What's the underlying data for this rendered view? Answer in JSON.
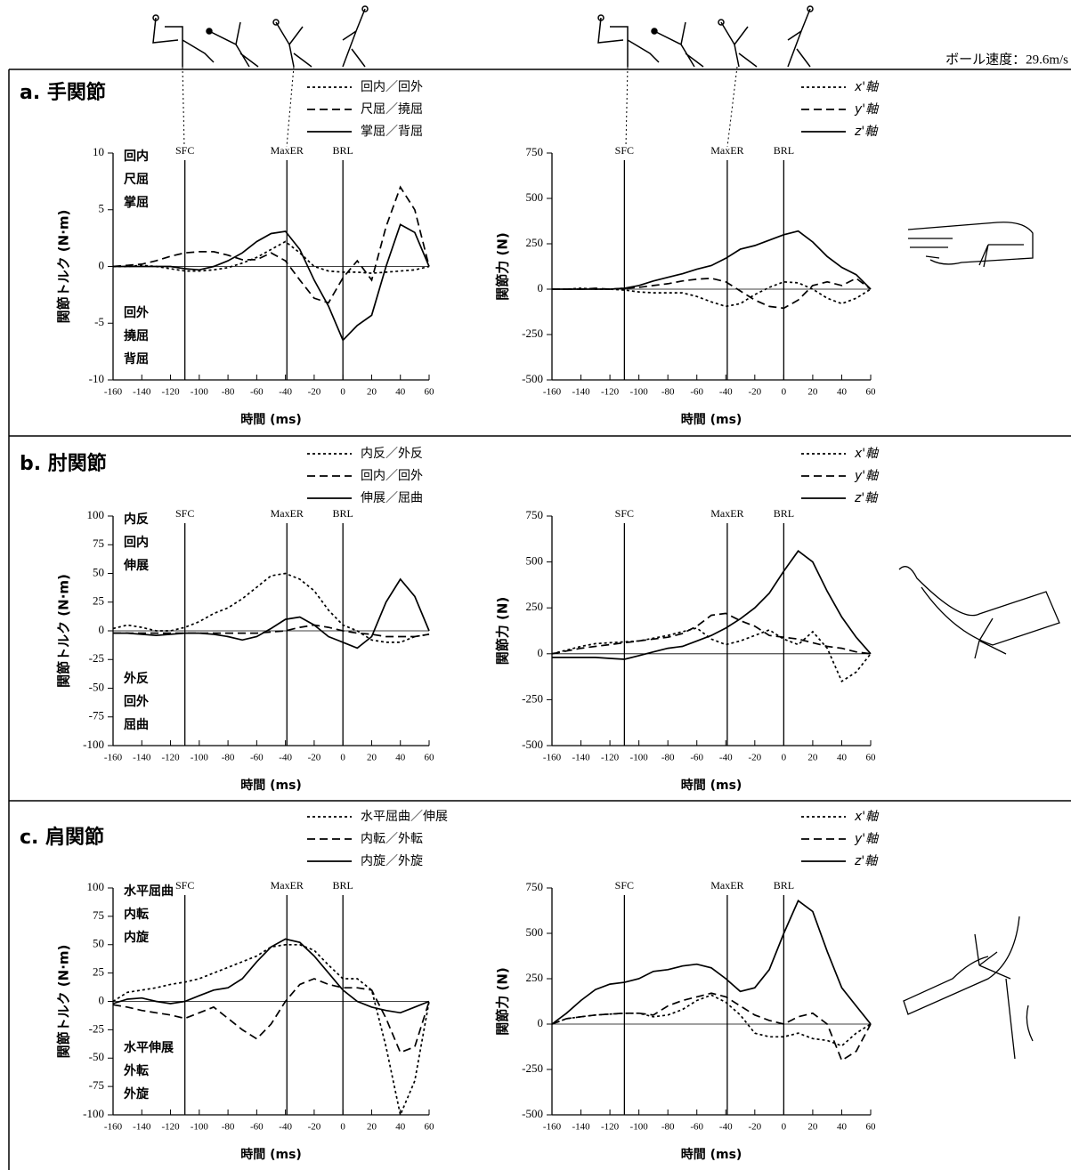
{
  "ball_speed_label": "ボール速度：29.6m/s",
  "chart_data": [
    {
      "type": "line",
      "title": "a. 手関節",
      "xlabel": "時間 (ms)",
      "ylabel": "関節トルク (N·m)",
      "x": [
        -160,
        -150,
        -140,
        -130,
        -120,
        -110,
        -100,
        -90,
        -80,
        -70,
        -60,
        -50,
        -40,
        -30,
        -20,
        -10,
        0,
        10,
        20,
        30,
        40,
        50,
        60
      ],
      "xlim": [
        -160,
        60
      ],
      "xticks": [
        -160,
        -140,
        -120,
        -100,
        -80,
        -60,
        -40,
        -20,
        0,
        20,
        40,
        60
      ],
      "ylim": [
        -10,
        10
      ],
      "yticks": [
        -10,
        -5,
        0,
        5,
        10
      ],
      "events": [
        {
          "label": "SFC",
          "x": -110
        },
        {
          "label": "MaxER",
          "x": -39
        },
        {
          "label": "BRL",
          "x": 0
        }
      ],
      "annotations_upper": [
        "回内",
        "尺屈",
        "掌屈"
      ],
      "annotations_lower": [
        "回外",
        "撓屈",
        "背屈"
      ],
      "series": [
        {
          "name": "回内／回外",
          "color": "#000",
          "style": "dotted",
          "values": [
            0,
            0,
            0.1,
            0,
            -0.2,
            -0.4,
            -0.4,
            -0.3,
            -0.1,
            0.3,
            0.8,
            1.5,
            2.2,
            1.2,
            0,
            -0.4,
            -0.5,
            -0.5,
            -0.6,
            -0.5,
            -0.4,
            -0.3,
            0
          ]
        },
        {
          "name": "尺屈／撓屈",
          "color": "#000",
          "style": "dashed",
          "values": [
            0,
            0.1,
            0.2,
            0.5,
            0.9,
            1.2,
            1.3,
            1.3,
            1,
            0.6,
            0.6,
            1.2,
            0.5,
            -1.2,
            -2.8,
            -3.2,
            -1,
            0.5,
            -1.2,
            3.5,
            7,
            5,
            0
          ]
        },
        {
          "name": "掌屈／背屈",
          "color": "#000",
          "style": "solid",
          "values": [
            0,
            0,
            0,
            0,
            0,
            -0.2,
            -0.3,
            0,
            0.5,
            1.2,
            2.2,
            2.9,
            3.1,
            1.5,
            -1.2,
            -3.5,
            -6.5,
            -5.2,
            -4.3,
            0,
            3.7,
            3,
            0
          ]
        }
      ]
    },
    {
      "type": "line",
      "xlabel": "時間 (ms)",
      "ylabel": "関節力 (N)",
      "x": [
        -160,
        -150,
        -140,
        -130,
        -120,
        -110,
        -100,
        -90,
        -80,
        -70,
        -60,
        -50,
        -40,
        -30,
        -20,
        -10,
        0,
        10,
        20,
        30,
        40,
        50,
        60
      ],
      "xlim": [
        -160,
        60
      ],
      "xticks": [
        -160,
        -140,
        -120,
        -100,
        -80,
        -60,
        -40,
        -20,
        0,
        20,
        40,
        60
      ],
      "ylim": [
        -500,
        750
      ],
      "yticks": [
        -500,
        -250,
        0,
        250,
        500,
        750
      ],
      "events": [
        {
          "label": "SFC",
          "x": -110
        },
        {
          "label": "MaxER",
          "x": -39
        },
        {
          "label": "BRL",
          "x": 0
        }
      ],
      "series": [
        {
          "name": "x'軸",
          "color": "#000",
          "style": "dotted",
          "values": [
            0,
            0,
            5,
            0,
            0,
            -5,
            -15,
            -20,
            -20,
            -20,
            -40,
            -70,
            -95,
            -80,
            -30,
            10,
            40,
            35,
            0,
            -50,
            -80,
            -50,
            0
          ]
        },
        {
          "name": "y'軸",
          "color": "#000",
          "style": "dashed",
          "values": [
            0,
            0,
            0,
            5,
            0,
            5,
            10,
            20,
            30,
            45,
            55,
            60,
            40,
            -10,
            -60,
            -95,
            -105,
            -60,
            20,
            40,
            20,
            60,
            0
          ]
        },
        {
          "name": "z'軸",
          "color": "#000",
          "style": "solid",
          "values": [
            0,
            0,
            0,
            0,
            0,
            5,
            20,
            45,
            65,
            85,
            110,
            130,
            170,
            220,
            240,
            270,
            300,
            320,
            260,
            180,
            120,
            80,
            0
          ]
        }
      ]
    },
    {
      "type": "line",
      "title": "b. 肘関節",
      "xlabel": "時間 (ms)",
      "ylabel": "関節トルク (N·m)",
      "x": [
        -160,
        -150,
        -140,
        -130,
        -120,
        -110,
        -100,
        -90,
        -80,
        -70,
        -60,
        -50,
        -40,
        -30,
        -20,
        -10,
        0,
        10,
        20,
        30,
        40,
        50,
        60
      ],
      "xlim": [
        -160,
        60
      ],
      "xticks": [
        -160,
        -140,
        -120,
        -100,
        -80,
        -60,
        -40,
        -20,
        0,
        20,
        40,
        60
      ],
      "ylim": [
        -100,
        100
      ],
      "yticks": [
        -100,
        -75,
        -50,
        -25,
        0,
        25,
        50,
        75,
        100
      ],
      "events": [
        {
          "label": "SFC",
          "x": -110
        },
        {
          "label": "MaxER",
          "x": -39
        },
        {
          "label": "BRL",
          "x": 0
        }
      ],
      "annotations_upper": [
        "内反",
        "回内",
        "伸展"
      ],
      "annotations_lower": [
        "外反",
        "回外",
        "屈曲"
      ],
      "series": [
        {
          "name": "内反／外反",
          "color": "#000",
          "style": "dotted",
          "values": [
            2,
            5,
            3,
            0,
            0,
            3,
            8,
            15,
            20,
            28,
            38,
            48,
            50,
            45,
            35,
            18,
            5,
            0,
            -8,
            -10,
            -10,
            -5,
            -3
          ]
        },
        {
          "name": "回内／回外",
          "color": "#000",
          "style": "dashed",
          "values": [
            -2,
            -2,
            -2,
            -2,
            -2,
            -2,
            -2,
            -2,
            -2,
            -2,
            -2,
            -1,
            0,
            3,
            5,
            3,
            0,
            -2,
            -3,
            -5,
            -5,
            -5,
            -3
          ]
        },
        {
          "name": "伸展／屈曲",
          "color": "#000",
          "style": "solid",
          "values": [
            -2,
            -2,
            -3,
            -4,
            -3,
            -2,
            -2,
            -3,
            -5,
            -8,
            -5,
            2,
            10,
            12,
            5,
            -5,
            -10,
            -15,
            -5,
            25,
            45,
            30,
            0
          ]
        }
      ]
    },
    {
      "type": "line",
      "xlabel": "時間 (ms)",
      "ylabel": "関節力 (N)",
      "x": [
        -160,
        -150,
        -140,
        -130,
        -120,
        -110,
        -100,
        -90,
        -80,
        -70,
        -60,
        -50,
        -40,
        -30,
        -20,
        -10,
        0,
        10,
        20,
        30,
        40,
        50,
        60
      ],
      "xlim": [
        -160,
        60
      ],
      "xticks": [
        -160,
        -140,
        -120,
        -100,
        -80,
        -60,
        -40,
        -20,
        0,
        20,
        40,
        60
      ],
      "ylim": [
        -500,
        750
      ],
      "yticks": [
        -500,
        -250,
        0,
        250,
        500,
        750
      ],
      "events": [
        {
          "label": "SFC",
          "x": -110
        },
        {
          "label": "MaxER",
          "x": -39
        },
        {
          "label": "BRL",
          "x": 0
        }
      ],
      "series": [
        {
          "name": "x'軸",
          "color": "#000",
          "style": "dotted",
          "values": [
            0,
            20,
            40,
            55,
            60,
            65,
            70,
            85,
            100,
            120,
            140,
            80,
            50,
            70,
            100,
            130,
            80,
            50,
            120,
            30,
            -150,
            -100,
            0
          ]
        },
        {
          "name": "y'軸",
          "color": "#000",
          "style": "dashed",
          "values": [
            0,
            15,
            30,
            40,
            50,
            60,
            70,
            80,
            90,
            110,
            150,
            210,
            220,
            180,
            150,
            100,
            90,
            80,
            60,
            40,
            30,
            10,
            0
          ]
        },
        {
          "name": "z'軸",
          "color": "#000",
          "style": "solid",
          "values": [
            -20,
            -20,
            -20,
            -20,
            -25,
            -30,
            -10,
            10,
            30,
            40,
            70,
            100,
            140,
            190,
            250,
            330,
            450,
            560,
            500,
            340,
            200,
            90,
            0
          ]
        }
      ]
    },
    {
      "type": "line",
      "title": "c. 肩関節",
      "xlabel": "時間 (ms)",
      "ylabel": "関節トルク (N·m)",
      "x": [
        -160,
        -150,
        -140,
        -130,
        -120,
        -110,
        -100,
        -90,
        -80,
        -70,
        -60,
        -50,
        -40,
        -30,
        -20,
        -10,
        0,
        10,
        20,
        30,
        40,
        50,
        60
      ],
      "xlim": [
        -160,
        60
      ],
      "xticks": [
        -160,
        -140,
        -120,
        -100,
        -80,
        -60,
        -40,
        -20,
        0,
        20,
        40,
        60
      ],
      "ylim": [
        -100,
        100
      ],
      "yticks": [
        -100,
        -75,
        -50,
        -25,
        0,
        25,
        50,
        75,
        100
      ],
      "events": [
        {
          "label": "SFC",
          "x": -110
        },
        {
          "label": "MaxER",
          "x": -39
        },
        {
          "label": "BRL",
          "x": 0
        }
      ],
      "annotations_upper": [
        "水平屈曲",
        "内転",
        "内旋"
      ],
      "annotations_lower": [
        "水平伸展",
        "外転",
        "外旋"
      ],
      "series": [
        {
          "name": "水平屈曲／伸展",
          "color": "#000",
          "style": "dotted",
          "values": [
            0,
            8,
            10,
            12,
            15,
            17,
            20,
            25,
            30,
            35,
            40,
            48,
            50,
            50,
            45,
            32,
            20,
            20,
            10,
            -40,
            -100,
            -70,
            0
          ]
        },
        {
          "name": "内転／外転",
          "color": "#000",
          "style": "dashed",
          "values": [
            -3,
            -5,
            -8,
            -10,
            -12,
            -15,
            -10,
            -5,
            -15,
            -25,
            -33,
            -20,
            0,
            15,
            20,
            15,
            12,
            12,
            10,
            -15,
            -45,
            -40,
            0
          ]
        },
        {
          "name": "内旋／外旋",
          "color": "#000",
          "style": "solid",
          "values": [
            -2,
            2,
            3,
            0,
            -2,
            0,
            5,
            10,
            12,
            20,
            35,
            48,
            55,
            52,
            40,
            25,
            10,
            0,
            -5,
            -8,
            -10,
            -5,
            0
          ]
        }
      ]
    },
    {
      "type": "line",
      "xlabel": "時間 (ms)",
      "ylabel": "関節力 (N)",
      "x": [
        -160,
        -150,
        -140,
        -130,
        -120,
        -110,
        -100,
        -90,
        -80,
        -70,
        -60,
        -50,
        -40,
        -30,
        -20,
        -10,
        0,
        10,
        20,
        30,
        40,
        50,
        60
      ],
      "xlim": [
        -160,
        60
      ],
      "xticks": [
        -160,
        -140,
        -120,
        -100,
        -80,
        -60,
        -40,
        -20,
        0,
        20,
        40,
        60
      ],
      "ylim": [
        -500,
        750
      ],
      "yticks": [
        -500,
        -250,
        0,
        250,
        500,
        750
      ],
      "events": [
        {
          "label": "SFC",
          "x": -110
        },
        {
          "label": "MaxER",
          "x": -39
        },
        {
          "label": "BRL",
          "x": 0
        }
      ],
      "series": [
        {
          "name": "x'軸",
          "color": "#000",
          "style": "dotted",
          "values": [
            0,
            30,
            40,
            50,
            55,
            60,
            60,
            40,
            50,
            80,
            130,
            160,
            120,
            50,
            -50,
            -70,
            -70,
            -50,
            -80,
            -90,
            -120,
            -50,
            0
          ]
        },
        {
          "name": "y'軸",
          "color": "#000",
          "style": "dashed",
          "values": [
            0,
            30,
            40,
            50,
            55,
            60,
            60,
            50,
            100,
            130,
            150,
            170,
            150,
            100,
            50,
            20,
            0,
            40,
            60,
            0,
            -200,
            -150,
            0
          ]
        },
        {
          "name": "z'軸",
          "color": "#000",
          "style": "solid",
          "values": [
            0,
            60,
            130,
            190,
            220,
            230,
            250,
            290,
            300,
            320,
            330,
            310,
            250,
            180,
            200,
            300,
            500,
            680,
            620,
            400,
            200,
            100,
            0
          ]
        }
      ]
    }
  ]
}
